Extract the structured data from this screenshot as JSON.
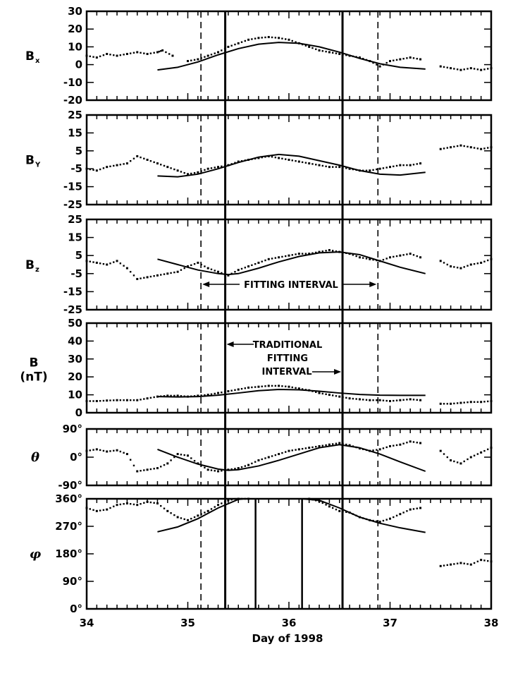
{
  "chart_data": {
    "type": "line",
    "xlabel": "Day of 1998",
    "xlim": [
      34,
      38
    ],
    "x_ticks": [
      "34",
      "35",
      "36",
      "37",
      "38"
    ],
    "dashed_lines_x": [
      35.13,
      36.88
    ],
    "traditional_lines_x": [
      35.37,
      36.53
    ],
    "annotations": {
      "fitting_interval": "FITTING INTERVAL",
      "traditional_line1": "TRADITIONAL",
      "traditional_line2": "FITTING",
      "traditional_line3": "INTERVAL"
    },
    "panels": [
      {
        "id": "bx",
        "label_main": "B",
        "label_sub": "x",
        "label_unit": "",
        "ylim": [
          -20,
          30
        ],
        "y_ticks": [
          -20,
          -10,
          0,
          10,
          20,
          30
        ],
        "y_tick_labels": [
          "-20",
          "-10",
          "0",
          "10",
          "20",
          "30"
        ],
        "fit": {
          "x": [
            34.7,
            34.9,
            35.1,
            35.3,
            35.5,
            35.7,
            35.9,
            36.1,
            36.3,
            36.5,
            36.7,
            36.9,
            37.1,
            37.35
          ],
          "y": [
            -3,
            -1.5,
            1.5,
            5.5,
            9,
            11.5,
            12.5,
            12,
            10,
            7,
            3.5,
            0.5,
            -1.5,
            -2.5
          ]
        },
        "observed": {
          "x": [
            34.0,
            34.1,
            34.2,
            34.3,
            34.4,
            34.5,
            34.6,
            34.7,
            34.75,
            34.85,
            35.0,
            35.1,
            35.2,
            35.3,
            35.4,
            35.5,
            35.6,
            35.7,
            35.8,
            35.9,
            36.0,
            36.1,
            36.2,
            36.3,
            36.4,
            36.5,
            36.6,
            36.7,
            36.8,
            36.9,
            37.0,
            37.1,
            37.2,
            37.3,
            37.5,
            37.6,
            37.7,
            37.8,
            37.9,
            38.0
          ],
          "y": [
            5,
            4,
            6,
            5,
            6,
            7,
            6,
            7,
            8,
            5,
            2,
            3,
            5,
            7,
            10,
            12,
            14,
            15,
            15.5,
            15,
            14,
            12,
            10,
            8,
            7,
            6,
            5,
            4,
            2,
            -1,
            2,
            3,
            4,
            3,
            -1,
            -2,
            -3,
            -2,
            -3,
            -2
          ]
        }
      },
      {
        "id": "by",
        "label_main": "B",
        "label_sub": "Y",
        "label_unit": "",
        "ylim": [
          -25,
          25
        ],
        "y_ticks": [
          -25,
          -15,
          -5,
          5,
          15,
          25
        ],
        "y_tick_labels": [
          "-25",
          "-15",
          "-5",
          "5",
          "15",
          "25"
        ],
        "fit": {
          "x": [
            34.7,
            34.9,
            35.1,
            35.3,
            35.5,
            35.7,
            35.9,
            36.1,
            36.3,
            36.5,
            36.7,
            36.9,
            37.1,
            37.35
          ],
          "y": [
            -9,
            -9.5,
            -8,
            -5,
            -1.5,
            1.5,
            3,
            2,
            -0.5,
            -3,
            -6,
            -8,
            -8.5,
            -7
          ]
        },
        "observed": {
          "x": [
            34.0,
            34.1,
            34.2,
            34.3,
            34.4,
            34.5,
            34.6,
            34.7,
            34.8,
            34.9,
            35.0,
            35.1,
            35.2,
            35.3,
            35.4,
            35.5,
            35.6,
            35.7,
            35.8,
            35.9,
            36.0,
            36.1,
            36.2,
            36.3,
            36.4,
            36.5,
            36.6,
            36.7,
            36.8,
            36.9,
            37.0,
            37.1,
            37.2,
            37.3,
            37.5,
            37.6,
            37.7,
            37.8,
            37.9,
            38.0
          ],
          "y": [
            -5,
            -6,
            -4,
            -3,
            -2,
            2,
            0,
            -2,
            -4,
            -6,
            -8,
            -7,
            -5,
            -4,
            -3,
            -1,
            0,
            1,
            2,
            1,
            0,
            -1,
            -2,
            -3,
            -4,
            -4,
            -5,
            -6,
            -6,
            -5,
            -4,
            -3,
            -3,
            -2,
            6,
            7,
            8,
            7,
            6,
            7
          ]
        }
      },
      {
        "id": "bz",
        "label_main": "B",
        "label_sub": "z",
        "label_unit": "",
        "ylim": [
          -25,
          25
        ],
        "y_ticks": [
          -25,
          -15,
          -5,
          5,
          15,
          25
        ],
        "y_tick_labels": [
          "-25",
          "-15",
          "-5",
          "5",
          "15",
          "25"
        ],
        "fit": {
          "x": [
            34.7,
            34.9,
            35.1,
            35.3,
            35.4,
            35.5,
            35.7,
            35.9,
            36.1,
            36.3,
            36.5,
            36.7,
            36.9,
            37.1,
            37.35
          ],
          "y": [
            3,
            0,
            -3,
            -5,
            -5.5,
            -5,
            -2,
            1.5,
            4.5,
            6.5,
            7,
            5.5,
            2,
            -1.5,
            -5
          ]
        },
        "observed": {
          "x": [
            34.0,
            34.1,
            34.2,
            34.3,
            34.4,
            34.5,
            34.6,
            34.7,
            34.8,
            34.9,
            35.0,
            35.1,
            35.2,
            35.3,
            35.4,
            35.5,
            35.6,
            35.7,
            35.8,
            35.9,
            36.0,
            36.1,
            36.2,
            36.3,
            36.4,
            36.5,
            36.6,
            36.7,
            36.8,
            36.9,
            37.0,
            37.1,
            37.2,
            37.3,
            37.5,
            37.6,
            37.7,
            37.8,
            37.9,
            38.0
          ],
          "y": [
            2,
            1,
            0,
            2,
            -2,
            -8,
            -7,
            -6,
            -5,
            -4,
            -1,
            1,
            -2,
            -4,
            -6,
            -3,
            -1,
            1,
            3,
            4,
            5,
            6,
            6,
            7,
            8,
            7,
            6,
            4,
            3,
            2,
            4,
            5,
            6,
            4,
            2,
            -1,
            -2,
            0,
            1,
            3
          ]
        }
      },
      {
        "id": "b",
        "label_main": "B",
        "label_sub": "",
        "label_unit": "(nT)",
        "ylim": [
          0,
          50
        ],
        "y_ticks": [
          0,
          10,
          20,
          30,
          40,
          50
        ],
        "y_tick_labels": [
          "0",
          "10",
          "20",
          "30",
          "40",
          "50"
        ],
        "fit": {
          "x": [
            34.7,
            34.9,
            35.1,
            35.3,
            35.5,
            35.7,
            35.9,
            36.1,
            36.3,
            36.5,
            36.7,
            36.9,
            37.1,
            37.35
          ],
          "y": [
            9,
            8.8,
            9,
            9.8,
            11,
            12.3,
            13,
            12.8,
            12,
            11,
            10.2,
            9.8,
            9.7,
            9.7
          ]
        },
        "observed": {
          "x": [
            34.0,
            34.1,
            34.2,
            34.3,
            34.4,
            34.5,
            34.6,
            34.7,
            34.8,
            34.9,
            35.0,
            35.1,
            35.2,
            35.3,
            35.4,
            35.5,
            35.6,
            35.7,
            35.8,
            35.9,
            36.0,
            36.1,
            36.2,
            36.3,
            36.4,
            36.5,
            36.6,
            36.7,
            36.8,
            36.9,
            37.0,
            37.1,
            37.2,
            37.3,
            37.5,
            37.6,
            37.7,
            37.8,
            37.9,
            38.0
          ],
          "y": [
            6.5,
            6.5,
            6.8,
            7,
            7,
            7,
            8,
            9,
            9.5,
            9.5,
            9,
            9.5,
            10,
            11,
            12,
            13,
            14,
            14.5,
            15,
            15,
            14.5,
            13.5,
            12.5,
            11,
            10,
            9,
            8,
            7.5,
            7,
            7,
            6.5,
            7,
            7.5,
            7,
            5,
            5,
            5.5,
            6,
            6,
            6.5
          ]
        }
      },
      {
        "id": "theta",
        "label_main": "θ",
        "label_sub": "",
        "label_unit": "",
        "ylim": [
          -90,
          90
        ],
        "y_ticks": [
          -90,
          0,
          90
        ],
        "y_tick_labels": [
          "-90°",
          "0°",
          "90°"
        ],
        "fit": {
          "x": [
            34.7,
            34.9,
            35.1,
            35.3,
            35.4,
            35.5,
            35.7,
            35.9,
            36.1,
            36.3,
            36.5,
            36.7,
            36.9,
            37.1,
            37.35
          ],
          "y": [
            25,
            0,
            -22,
            -38,
            -42,
            -40,
            -28,
            -10,
            10,
            30,
            40,
            30,
            10,
            -15,
            -45
          ]
        },
        "observed": {
          "x": [
            34.0,
            34.1,
            34.2,
            34.3,
            34.4,
            34.5,
            34.6,
            34.7,
            34.8,
            34.9,
            35.0,
            35.1,
            35.2,
            35.3,
            35.4,
            35.5,
            35.6,
            35.7,
            35.8,
            35.9,
            36.0,
            36.1,
            36.2,
            36.3,
            36.4,
            36.5,
            36.6,
            36.7,
            36.8,
            36.9,
            37.0,
            37.1,
            37.2,
            37.3,
            37.5,
            37.6,
            37.7,
            37.8,
            37.9,
            38.0
          ],
          "y": [
            20,
            25,
            18,
            22,
            10,
            -45,
            -40,
            -35,
            -20,
            10,
            5,
            -20,
            -40,
            -45,
            -40,
            -35,
            -25,
            -10,
            0,
            10,
            20,
            25,
            30,
            35,
            40,
            45,
            38,
            28,
            20,
            25,
            35,
            40,
            50,
            45,
            20,
            -10,
            -20,
            0,
            15,
            30
          ]
        }
      },
      {
        "id": "phi",
        "label_main": "φ",
        "label_sub": "",
        "label_unit": "",
        "ylim": [
          0,
          360
        ],
        "y_ticks": [
          0,
          90,
          180,
          270,
          360
        ],
        "y_tick_labels": [
          "0°",
          "90°",
          "180°",
          "270°",
          "360°"
        ],
        "vertical_segments_x": [
          35.67,
          36.13
        ],
        "fit": {
          "x": [
            34.7,
            34.9,
            35.1,
            35.3,
            35.5,
            35.55,
            35.67
          ],
          "y": [
            252,
            268,
            295,
            330,
            358,
            362,
            365
          ],
          "x2": [
            36.13,
            36.3,
            36.5,
            36.7,
            36.9,
            37.1,
            37.35
          ],
          "y2": [
            365,
            355,
            330,
            300,
            280,
            265,
            250
          ]
        },
        "observed": {
          "x": [
            34.0,
            34.1,
            34.2,
            34.3,
            34.4,
            34.5,
            34.6,
            34.7,
            34.8,
            34.9,
            35.0,
            35.1,
            35.2,
            35.3,
            35.4,
            35.5,
            35.6,
            36.2,
            36.3,
            36.4,
            36.5,
            36.6,
            36.7,
            36.8,
            36.9,
            37.0,
            37.1,
            37.2,
            37.3,
            37.5,
            37.6,
            37.7,
            37.8,
            37.9,
            38.0
          ],
          "y": [
            330,
            320,
            325,
            340,
            345,
            340,
            350,
            345,
            320,
            300,
            290,
            305,
            320,
            340,
            355,
            362,
            360,
            360,
            352,
            335,
            320,
            315,
            300,
            290,
            285,
            295,
            310,
            325,
            330,
            140,
            145,
            150,
            145,
            160,
            155
          ]
        }
      }
    ]
  }
}
